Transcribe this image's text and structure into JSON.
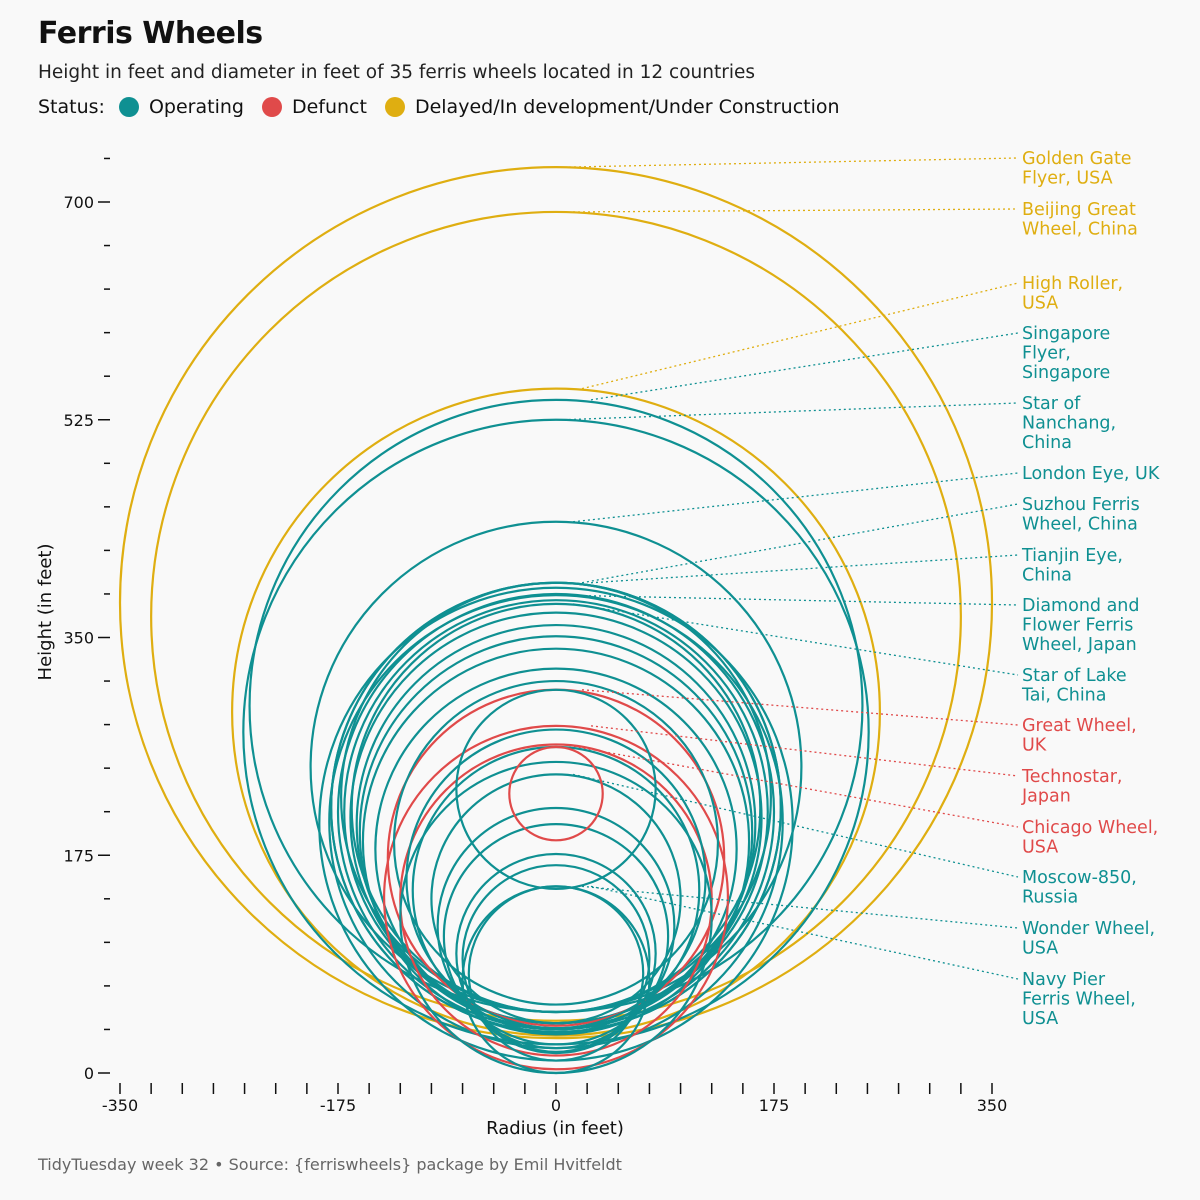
{
  "header": {
    "title": "Ferris Wheels",
    "subtitle": "Height in feet and diameter in feet of 35 ferris wheels located in 12 countries"
  },
  "legend": {
    "title": "Status:",
    "items": [
      {
        "label": "Operating",
        "color": "#0f9092"
      },
      {
        "label": "Defunct",
        "color": "#e04a4a"
      },
      {
        "label": "Delayed/In development/Under Construction",
        "color": "#dfae11"
      }
    ]
  },
  "caption": "TidyTuesday week 32 • Source: {ferriswheels} package by Emil Hvitfeldt",
  "chart_data": {
    "type": "scatter",
    "title": "Ferris Wheels",
    "xlabel": "Radius (in feet)",
    "ylabel": "Height (in feet)",
    "xlim": [
      -350,
      350
    ],
    "ylim": [
      0,
      700
    ],
    "x_ticks": [
      -350,
      -175,
      0,
      175,
      350
    ],
    "y_ticks": [
      0,
      175,
      350,
      525,
      700
    ],
    "legend_position": "top-left",
    "colors": {
      "Operating": "#0f9092",
      "Defunct": "#e04a4a",
      "Delayed/In development/Under Construction": "#dfae11"
    },
    "wheels": [
      {
        "label": "Golden Gate Flyer, USA",
        "status": "Delayed/In development/Under Construction",
        "height": 728,
        "diameter": 700
      },
      {
        "label": "Beijing Great Wheel, China",
        "status": "Delayed/In development/Under Construction",
        "height": 692,
        "diameter": 650
      },
      {
        "label": "High Roller, USA",
        "status": "Delayed/In development/Under Construction",
        "height": 550,
        "diameter": 520
      },
      {
        "label": "Singapore Flyer, Singapore",
        "status": "Operating",
        "height": 541,
        "diameter": 492
      },
      {
        "label": "Star of Nanchang, China",
        "status": "Operating",
        "height": 525,
        "diameter": 502
      },
      {
        "label": "London Eye, UK",
        "status": "Operating",
        "height": 443,
        "diameter": 394
      },
      {
        "label": "Suzhou Ferris Wheel, China",
        "status": "Operating",
        "height": 394,
        "diameter": 361
      },
      {
        "label": "Tianjin Eye, China",
        "status": "Operating",
        "height": 394,
        "diameter": 361
      },
      {
        "label": "Diamond and Flower Ferris Wheel, Japan",
        "status": "Operating",
        "height": 384,
        "diameter": 364
      },
      {
        "label": "Star of Lake Tai, China",
        "status": "Operating",
        "height": 377,
        "diameter": 328
      },
      {
        "label": "Great Wheel, UK",
        "status": "Defunct",
        "height": 308,
        "diameter": 270
      },
      {
        "label": "Technostar, Japan",
        "status": "Defunct",
        "height": 279,
        "diameter": 276
      },
      {
        "label": "Chicago Wheel, USA",
        "status": "Defunct",
        "height": 264,
        "diameter": 250
      },
      {
        "label": "Moscow-850, Russia",
        "status": "Operating",
        "height": 240,
        "diameter": 200
      },
      {
        "label": "Wonder Wheel, USA",
        "status": "Operating",
        "height": 150,
        "diameter": 140
      },
      {
        "label": "Navy Pier Ferris Wheel, USA",
        "status": "Operating",
        "height": 150,
        "diameter": 150
      },
      {
        "label": "",
        "status": "Operating",
        "height": 394,
        "diameter": 345
      },
      {
        "label": "",
        "status": "Operating",
        "height": 390,
        "diameter": 380
      },
      {
        "label": "",
        "status": "Operating",
        "height": 385,
        "diameter": 350
      },
      {
        "label": "",
        "status": "Operating",
        "height": 380,
        "diameter": 340
      },
      {
        "label": "",
        "status": "Operating",
        "height": 370,
        "diameter": 330
      },
      {
        "label": "",
        "status": "Operating",
        "height": 360,
        "diameter": 320
      },
      {
        "label": "",
        "status": "Operating",
        "height": 351,
        "diameter": 315
      },
      {
        "label": "",
        "status": "Operating",
        "height": 341,
        "diameter": 310
      },
      {
        "label": "",
        "status": "Operating",
        "height": 325,
        "diameter": 290
      },
      {
        "label": "",
        "status": "Operating",
        "height": 315,
        "diameter": 260
      },
      {
        "label": "",
        "status": "Operating",
        "height": 308,
        "diameter": 160
      },
      {
        "label": "",
        "status": "Operating",
        "height": 276,
        "diameter": 240
      },
      {
        "label": "",
        "status": "Operating",
        "height": 262,
        "diameter": 230
      },
      {
        "label": "",
        "status": "Operating",
        "height": 250,
        "diameter": 250
      },
      {
        "label": "",
        "status": "Operating",
        "height": 213,
        "diameter": 190
      },
      {
        "label": "",
        "status": "Operating",
        "height": 200,
        "diameter": 180
      },
      {
        "label": "",
        "status": "Operating",
        "height": 176,
        "diameter": 160
      },
      {
        "label": "",
        "status": "Operating",
        "height": 167,
        "diameter": 150
      },
      {
        "label": "",
        "status": "Defunct",
        "height": 262,
        "diameter": 75
      }
    ]
  }
}
